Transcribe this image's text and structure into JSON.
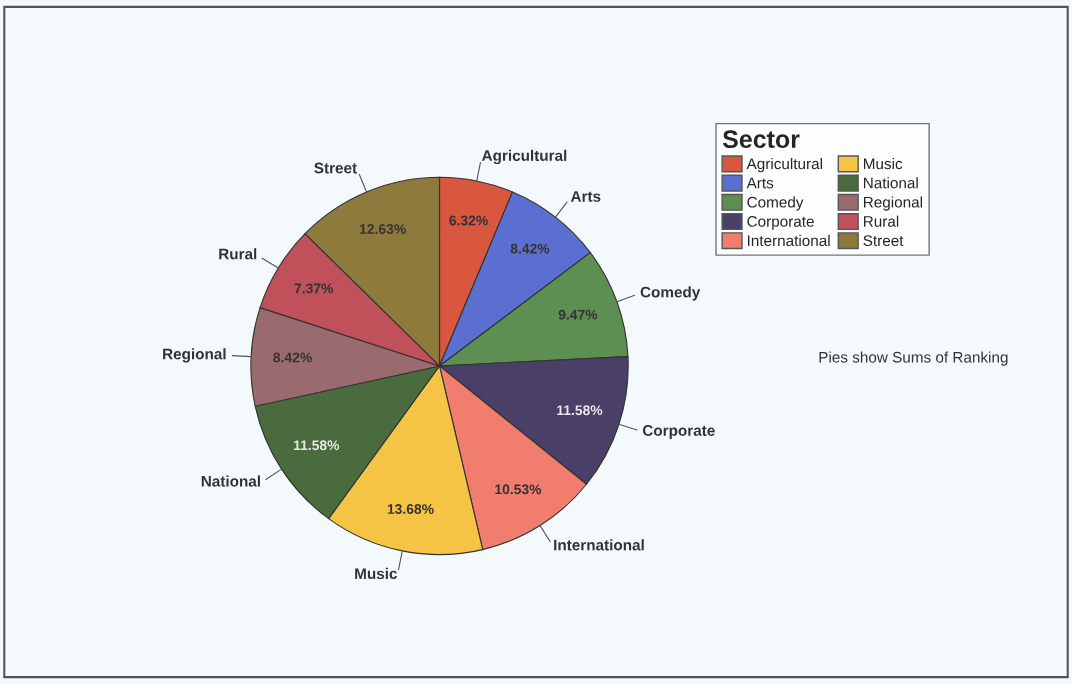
{
  "chart_data": {
    "type": "pie",
    "legend_title": "Sector",
    "legend": "right",
    "categories": [
      "Agricultural",
      "Arts",
      "Comedy",
      "Corporate",
      "International",
      "Music",
      "National",
      "Regional",
      "Rural",
      "Street"
    ],
    "values": [
      6.32,
      8.42,
      9.47,
      11.58,
      10.53,
      13.68,
      11.58,
      8.42,
      7.37,
      12.63
    ],
    "value_labels": [
      "6.32%",
      "8.42%",
      "9.47%",
      "11.58%",
      "10.53%",
      "13.68%",
      "11.58%",
      "8.42%",
      "7.37%",
      "12.63%"
    ],
    "colors": [
      "#d9573f",
      "#5b6fd1",
      "#5e8f52",
      "#4a3f66",
      "#f07d6e",
      "#f5c444",
      "#4a6b3e",
      "#9a6b6e",
      "#c0505a",
      "#8f7a3e"
    ],
    "annotations": [
      "Pies show Sums of Ranking"
    ]
  }
}
